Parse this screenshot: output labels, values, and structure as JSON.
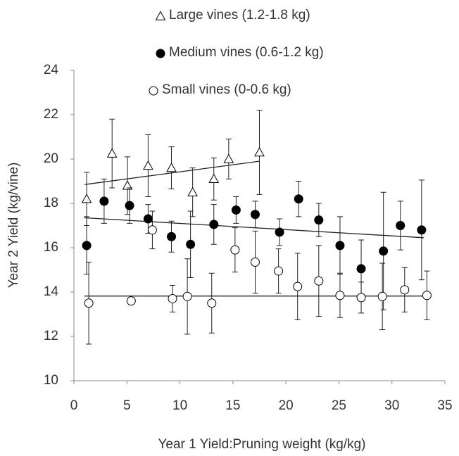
{
  "chart_data": {
    "type": "scatter",
    "xlabel": "Year 1 Yield:Pruning weight (kg/kg)",
    "ylabel": "Year 2 Yield (kg/vine)",
    "xlim": [
      0,
      35
    ],
    "xticks": [
      0,
      5,
      10,
      15,
      20,
      25,
      30,
      35
    ],
    "ylim": [
      10,
      24
    ],
    "yticks": [
      10,
      12,
      14,
      16,
      18,
      20,
      22,
      24
    ],
    "grid": false,
    "series": [
      {
        "name": "Large vines (1.2-1.8 kg)",
        "marker": "triangle",
        "color": "#000000",
        "x": [
          1.2,
          3.6,
          5.05,
          7.0,
          9.2,
          11.2,
          13.2,
          14.6,
          17.5
        ],
        "values": [
          18.2,
          20.25,
          18.8,
          19.7,
          19.6,
          18.5,
          19.1,
          20.0,
          20.3
        ],
        "errors": [
          1.2,
          1.55,
          1.3,
          1.4,
          0.95,
          1.1,
          0.95,
          0.9,
          1.9
        ],
        "trend": {
          "x": [
            1,
            17.5
          ],
          "values": [
            18.85,
            19.9
          ]
        }
      },
      {
        "name": "Medium vines (0.6-1.2 kg)",
        "marker": "filled-circle",
        "color": "#000000",
        "x": [
          1.2,
          2.85,
          5.25,
          7.0,
          9.2,
          11.0,
          13.2,
          15.3,
          17.1,
          19.4,
          21.2,
          23.1,
          25.1,
          27.1,
          29.2,
          30.8,
          32.8
        ],
        "values": [
          16.1,
          18.1,
          17.9,
          17.3,
          16.5,
          16.15,
          17.05,
          17.7,
          17.5,
          16.7,
          18.2,
          17.25,
          16.1,
          15.05,
          15.85,
          17.0,
          16.8
        ],
        "errors": [
          1.3,
          1.0,
          0.8,
          0.65,
          0.7,
          1.5,
          0.9,
          0.6,
          0.6,
          0.6,
          0.8,
          0.75,
          1.3,
          1.3,
          2.65,
          1.1,
          2.25
        ],
        "trend": {
          "x": [
            1,
            33
          ],
          "values": [
            17.35,
            16.45
          ]
        }
      },
      {
        "name": "Small vines (0-0.6 kg)",
        "marker": "open-circle",
        "color": "#000000",
        "x": [
          1.4,
          5.4,
          7.4,
          9.3,
          10.7,
          13.0,
          15.2,
          17.1,
          19.3,
          21.1,
          23.1,
          25.1,
          27.1,
          29.1,
          31.2,
          33.3
        ],
        "values": [
          13.5,
          13.6,
          16.8,
          13.7,
          13.8,
          13.5,
          15.9,
          15.35,
          14.95,
          14.25,
          14.5,
          13.85,
          13.75,
          13.8,
          14.1,
          13.85
        ],
        "errors": [
          1.85,
          0,
          0.85,
          0.6,
          1.7,
          1.35,
          1.0,
          1.4,
          1.0,
          1.5,
          1.6,
          1.0,
          0.7,
          1.5,
          1.0,
          1.1
        ],
        "trend": {
          "x": [
            1,
            33
          ],
          "values": [
            13.82,
            13.82
          ]
        }
      }
    ]
  }
}
